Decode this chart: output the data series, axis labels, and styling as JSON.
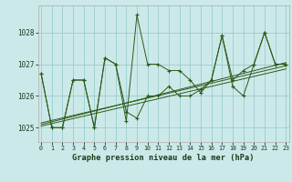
{
  "title": "Graphe pression niveau de la mer (hPa)",
  "bg_color": "#cce9e9",
  "grid_color": "#99cccc",
  "line_color": "#2d5a1a",
  "xlim": [
    -0.3,
    23.3
  ],
  "ylim": [
    1024.55,
    1028.85
  ],
  "yticks": [
    1025,
    1026,
    1027,
    1028
  ],
  "xtick_labels": [
    "0",
    "1",
    "2",
    "3",
    "4",
    "5",
    "6",
    "7",
    "8",
    "9",
    "10",
    "11",
    "12",
    "13",
    "14",
    "15",
    "16",
    "17",
    "18",
    "19",
    "20",
    "21",
    "22",
    "23"
  ],
  "series1_y": [
    1026.7,
    1025.0,
    1025.0,
    1026.5,
    1026.5,
    1025.0,
    1027.2,
    1027.0,
    1025.2,
    1028.55,
    1027.0,
    1027.0,
    1026.8,
    1026.8,
    1026.5,
    1026.1,
    1026.5,
    1027.9,
    1026.5,
    1026.8,
    1027.0,
    1028.0,
    1027.0,
    1027.0
  ],
  "series2_y": [
    1026.7,
    1025.0,
    1025.0,
    1026.5,
    1026.5,
    1025.0,
    1027.2,
    1027.0,
    1025.5,
    1025.3,
    1026.0,
    1026.0,
    1026.3,
    1026.0,
    1026.0,
    1026.2,
    1026.5,
    1027.9,
    1026.3,
    1026.0,
    1027.0,
    1028.0,
    1027.0,
    1027.0
  ],
  "trend1_x": [
    0,
    23
  ],
  "trend1_y": [
    1025.15,
    1026.95
  ],
  "trend2_x": [
    0,
    23
  ],
  "trend2_y": [
    1025.05,
    1026.85
  ],
  "trend3_x": [
    0,
    23
  ],
  "trend3_y": [
    1025.1,
    1027.05
  ]
}
